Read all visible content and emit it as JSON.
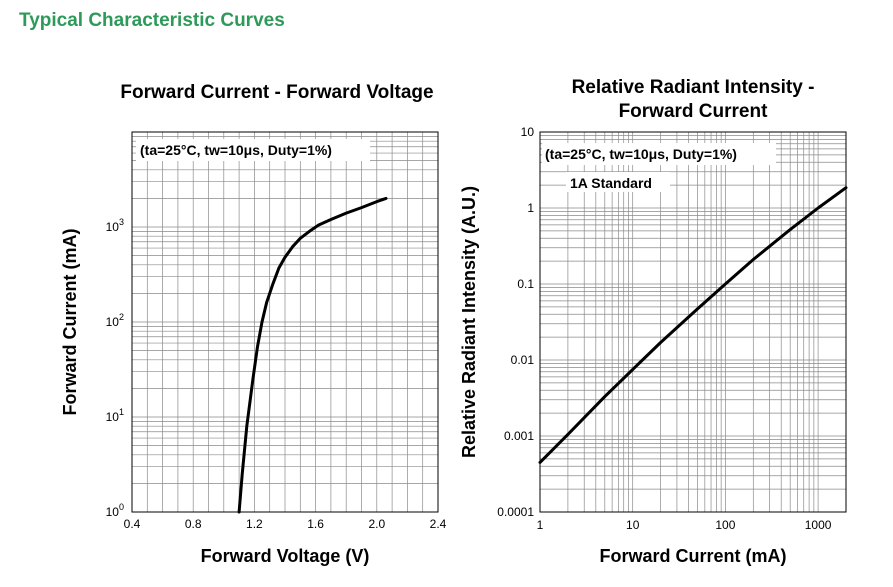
{
  "page": {
    "heading": "Typical Characteristic Curves",
    "heading_color": "#2e9a5a"
  },
  "chart_data": [
    {
      "type": "line",
      "title": "Forward Current - Forward Voltage",
      "annotation": "(ta=25°C, tw=10μs, Duty=1%)",
      "xlabel": "Forward Voltage (V)",
      "ylabel": "Forward Current (mA)",
      "xlim": [
        0.4,
        2.4
      ],
      "ylim": [
        1,
        10000
      ],
      "x_scale": "linear",
      "y_scale": "log",
      "x_ticks": [
        "0.4",
        "0.8",
        "1.2",
        "1.6",
        "2.0",
        "2.4"
      ],
      "y_ticks": [
        {
          "base": "10",
          "exp": "0"
        },
        {
          "base": "10",
          "exp": "1"
        },
        {
          "base": "10",
          "exp": "2"
        },
        {
          "base": "10",
          "exp": "3"
        }
      ],
      "grid": true,
      "series": [
        {
          "x": [
            1.1,
            1.12,
            1.15,
            1.19,
            1.22,
            1.25,
            1.28,
            1.32,
            1.36,
            1.4,
            1.45,
            1.5,
            1.56,
            1.62,
            1.7,
            1.8,
            1.9,
            2.0,
            2.06
          ],
          "y": [
            1,
            2.5,
            8,
            25,
            55,
            100,
            160,
            250,
            370,
            480,
            620,
            760,
            900,
            1050,
            1200,
            1400,
            1600,
            1850,
            2000
          ]
        }
      ]
    },
    {
      "type": "line",
      "title": [
        "Relative Radiant Intensity -",
        "Forward Current"
      ],
      "annotation": "(ta=25°C, tw=10μs, Duty=1%)",
      "annotation2": "1A Standard",
      "xlabel": "Forward Current (mA)",
      "ylabel": "Relative Radiant Intensity (A.U.)",
      "xlim": [
        1,
        2000
      ],
      "ylim": [
        0.0001,
        10
      ],
      "x_scale": "log",
      "y_scale": "log",
      "x_ticks": [
        "1",
        "10",
        "100",
        "1000"
      ],
      "y_ticks": [
        "0.0001",
        "0.001",
        "0.01",
        "0.1",
        "1",
        "10"
      ],
      "grid": true,
      "series": [
        {
          "x": [
            1,
            2,
            5,
            10,
            20,
            50,
            100,
            200,
            500,
            1000,
            2000
          ],
          "y": [
            0.00045,
            0.00105,
            0.0033,
            0.0075,
            0.017,
            0.047,
            0.1,
            0.21,
            0.52,
            1.0,
            1.85
          ]
        }
      ]
    }
  ]
}
